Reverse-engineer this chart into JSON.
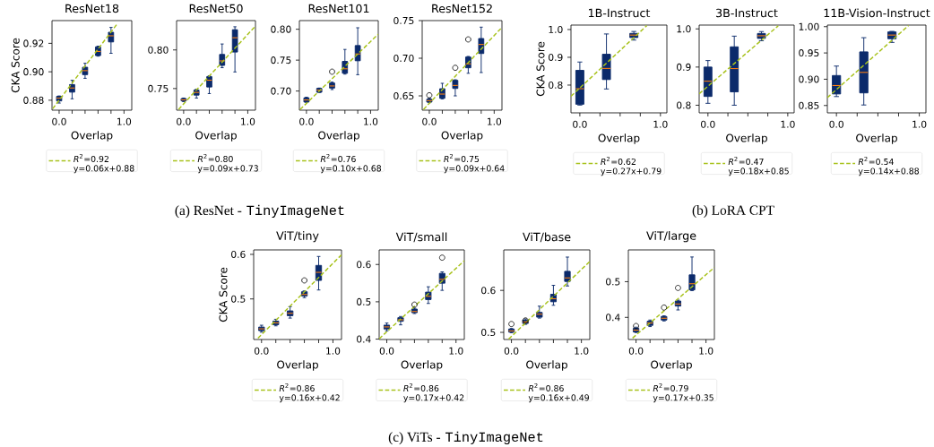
{
  "chart_data": [
    {
      "type": "box",
      "title": "ResNet18",
      "xlabel": "Overlap",
      "ylabel": "CKA Score",
      "xlim": [
        -0.11,
        1.12
      ],
      "ylim": [
        0.873,
        0.936
      ],
      "xticks": [
        {
          "value": 0,
          "label": "0.0"
        },
        {
          "value": 0.2,
          "label": null
        },
        {
          "value": 0.4,
          "label": null
        },
        {
          "value": 0.6,
          "label": null
        },
        {
          "value": 0.8,
          "label": null
        },
        {
          "value": 1,
          "label": "1.0"
        }
      ],
      "yticks": [
        {
          "value": 0.88,
          "label": "0.88"
        },
        {
          "value": 0.9,
          "label": "0.90"
        },
        {
          "value": 0.92,
          "label": "0.92"
        }
      ],
      "legend": "bottom",
      "annotations": [
        "(a) ResNet -",
        "TinyImageNet"
      ],
      "series": [
        {
          "color": "#0b2a6b",
          "x": [
            0,
            0.2,
            0.4,
            0.6,
            0.8
          ],
          "boxes": [
            {
              "low": 0.878,
              "q1": 0.8795,
              "median": 0.8815,
              "q3": 0.8827,
              "high": 0.883
            },
            {
              "low": 0.881,
              "q1": 0.8857,
              "median": 0.8886,
              "q3": 0.891,
              "high": 0.894
            },
            {
              "low": 0.8954,
              "q1": 0.898,
              "median": 0.9008,
              "q3": 0.9032,
              "high": 0.906
            },
            {
              "low": 0.911,
              "q1": 0.9114,
              "median": 0.9143,
              "q3": 0.9175,
              "high": 0.918
            },
            {
              "low": 0.913,
              "q1": 0.921,
              "median": 0.9253,
              "q3": 0.9278,
              "high": 0.9312
            }
          ]
        },
        {
          "type": "line",
          "name": "*R*$^{2}$=0.92 y=0.06x+0.88",
          "color": "#a8c21c",
          "line_style": "dashed",
          "x": [
            -0.1,
            0.9
          ],
          "values": [
            0.874,
            0.934
          ]
        }
      ]
    },
    {
      "type": "box",
      "title": "ResNet50",
      "xlabel": "Overlap",
      "xlim": [
        -0.11,
        1.12
      ],
      "ylim": [
        0.722,
        0.838
      ],
      "xticks": [
        {
          "value": 0,
          "label": "0.0"
        },
        {
          "value": 0.2,
          "label": null
        },
        {
          "value": 0.4,
          "label": null
        },
        {
          "value": 0.6,
          "label": null
        },
        {
          "value": 0.8,
          "label": null
        },
        {
          "value": 1,
          "label": "1.0"
        }
      ],
      "yticks": [
        {
          "value": 0.75,
          "label": "0.75"
        },
        {
          "value": 0.8,
          "label": "0.80"
        }
      ],
      "legend": "bottom",
      "series": [
        {
          "color": "#0b2a6b",
          "x": [
            0,
            0.2,
            0.4,
            0.6,
            0.8
          ],
          "boxes": [
            {
              "low": 0.7331,
              "q1": 0.734,
              "median": 0.7354,
              "q3": 0.737,
              "high": 0.7377
            },
            {
              "low": 0.7377,
              "q1": 0.7415,
              "median": 0.745,
              "q3": 0.748,
              "high": 0.7492
            },
            {
              "low": 0.7435,
              "q1": 0.752,
              "median": 0.7608,
              "q3": 0.7654,
              "high": 0.7665
            },
            {
              "low": 0.777,
              "q1": 0.78,
              "median": 0.7858,
              "q3": 0.7942,
              "high": 0.8077
            },
            {
              "low": 0.7715,
              "q1": 0.7973,
              "median": 0.8158,
              "q3": 0.8262,
              "high": 0.83
            }
          ]
        },
        {
          "type": "line",
          "name": "*R*$^{2}$=0.80 y=0.09x+0.73",
          "color": "#a8c21c",
          "line_style": "dashed",
          "x": [
            -0.08,
            1.12
          ],
          "values": [
            0.723,
            0.831
          ]
        }
      ]
    },
    {
      "type": "box",
      "title": "ResNet101",
      "xlabel": "Overlap",
      "xlim": [
        -0.11,
        1.12
      ],
      "ylim": [
        0.669,
        0.814
      ],
      "xticks": [
        {
          "value": 0,
          "label": "0.0"
        },
        {
          "value": 0.2,
          "label": null
        },
        {
          "value": 0.4,
          "label": null
        },
        {
          "value": 0.6,
          "label": null
        },
        {
          "value": 0.8,
          "label": null
        },
        {
          "value": 1,
          "label": "1.0"
        }
      ],
      "yticks": [
        {
          "value": 0.7,
          "label": "0.70"
        },
        {
          "value": 0.75,
          "label": "0.75"
        },
        {
          "value": 0.8,
          "label": "0.80"
        }
      ],
      "legend": "bottom",
      "series": [
        {
          "color": "#0b2a6b",
          "x": [
            0,
            0.2,
            0.4,
            0.6,
            0.8
          ],
          "boxes": [
            {
              "low": 0.6817,
              "q1": 0.6822,
              "median": 0.6856,
              "q3": 0.689,
              "high": 0.69
            },
            {
              "low": 0.6976,
              "q1": 0.698,
              "median": 0.7014,
              "q3": 0.7043,
              "high": 0.7048
            },
            {
              "low": 0.7024,
              "q1": 0.7048,
              "median": 0.7082,
              "q3": 0.713,
              "high": 0.7144,
              "outliers": [
                0.7313
              ]
            },
            {
              "low": 0.7274,
              "q1": 0.7288,
              "median": 0.736,
              "q3": 0.748,
              "high": 0.7673
            },
            {
              "low": 0.7264,
              "q1": 0.749,
              "median": 0.76,
              "q3": 0.7736,
              "high": 0.8024
            }
          ]
        },
        {
          "type": "line",
          "name": "*R*$^{2}$=0.76 y=0.10x+0.68",
          "color": "#a8c21c",
          "line_style": "dashed",
          "x": [
            -0.1,
            1.12
          ],
          "values": [
            0.67,
            0.792
          ]
        }
      ]
    },
    {
      "type": "box",
      "title": "ResNet152",
      "xlabel": "Overlap",
      "xlim": [
        -0.11,
        1.12
      ],
      "ylim": [
        0.631,
        0.75
      ],
      "xticks": [
        {
          "value": 0,
          "label": "0.0"
        },
        {
          "value": 0.2,
          "label": null
        },
        {
          "value": 0.4,
          "label": null
        },
        {
          "value": 0.6,
          "label": null
        },
        {
          "value": 0.8,
          "label": null
        },
        {
          "value": 1,
          "label": "1.0"
        }
      ],
      "yticks": [
        {
          "value": 0.65,
          "label": "0.65"
        },
        {
          "value": 0.7,
          "label": "0.70"
        },
        {
          "value": 0.75,
          "label": "0.75"
        }
      ],
      "legend": "bottom",
      "series": [
        {
          "color": "#0b2a6b",
          "x": [
            0,
            0.2,
            0.4,
            0.6,
            0.8
          ],
          "boxes": [
            {
              "low": 0.6409,
              "q1": 0.6417,
              "median": 0.6437,
              "q3": 0.6456,
              "high": 0.6468,
              "outliers": [
                0.6508
              ]
            },
            {
              "low": 0.646,
              "q1": 0.6468,
              "median": 0.6524,
              "q3": 0.6595,
              "high": 0.6667
            },
            {
              "low": 0.65,
              "q1": 0.6599,
              "median": 0.6639,
              "q3": 0.6706,
              "high": 0.6714,
              "outliers": [
                0.6873
              ]
            },
            {
              "low": 0.68,
              "q1": 0.6873,
              "median": 0.6925,
              "q3": 0.7016,
              "high": 0.7024,
              "outliers": [
                0.725
              ]
            },
            {
              "low": 0.681,
              "q1": 0.7063,
              "median": 0.7183,
              "q3": 0.7262,
              "high": 0.7413
            }
          ]
        },
        {
          "type": "line",
          "name": "*R*$^{2}$=0.75 y=0.09x+0.64",
          "color": "#a8c21c",
          "line_style": "dashed",
          "x": [
            -0.09,
            1.12
          ],
          "values": [
            0.632,
            0.741
          ]
        }
      ]
    },
    {
      "type": "box",
      "title": "1B-Instruct",
      "xlabel": "Overlap",
      "ylabel": "CKA Score",
      "xlim": [
        -0.11,
        1.08
      ],
      "ylim": [
        0.7,
        1.016
      ],
      "xticks": [
        {
          "value": 0,
          "label": "0.0"
        },
        {
          "value": 0.25,
          "label": null
        },
        {
          "value": 0.5,
          "label": null
        },
        {
          "value": 0.75,
          "label": null
        },
        {
          "value": 1,
          "label": "1.0"
        }
      ],
      "yticks": [
        {
          "value": 0.8,
          "label": "0.8"
        },
        {
          "value": 0.9,
          "label": "0.9"
        },
        {
          "value": 1.0,
          "label": "1.0"
        }
      ],
      "legend": "bottom",
      "annotations": [
        "(b) LoRA CPT"
      ],
      "series": [
        {
          "color": "#0b2a6b",
          "x": [
            0,
            0.33,
            0.67
          ],
          "boxes": [
            {
              "low": 0.728,
              "q1": 0.731,
              "median": 0.787,
              "q3": 0.853,
              "high": 0.883
            },
            {
              "low": 0.786,
              "q1": 0.82,
              "median": 0.86,
              "q3": 0.911,
              "high": 0.984
            },
            {
              "low": 0.962,
              "q1": 0.971,
              "median": 0.98,
              "q3": 0.986,
              "high": 0.993
            }
          ]
        },
        {
          "type": "line",
          "name": "*R*$^{2}$=0.62 y=0.27x+0.79",
          "color": "#a8c21c",
          "line_style": "dashed",
          "x": [
            -0.11,
            0.83
          ],
          "values": [
            0.76,
            1.014
          ]
        }
      ]
    },
    {
      "type": "box",
      "title": "3B-Instruct",
      "xlabel": "Overlap",
      "xlim": [
        -0.11,
        1.08
      ],
      "ylim": [
        0.78,
        1.01
      ],
      "xticks": [
        {
          "value": 0,
          "label": "0.0"
        },
        {
          "value": 0.25,
          "label": null
        },
        {
          "value": 0.5,
          "label": null
        },
        {
          "value": 0.75,
          "label": null
        },
        {
          "value": 1,
          "label": "1.0"
        }
      ],
      "yticks": [
        {
          "value": 0.8,
          "label": "0.8"
        },
        {
          "value": 0.9,
          "label": "0.9"
        },
        {
          "value": 1.0,
          "label": "1.0"
        }
      ],
      "legend": "bottom",
      "series": [
        {
          "color": "#0b2a6b",
          "x": [
            0,
            0.33,
            0.67
          ],
          "boxes": [
            {
              "low": 0.805,
              "q1": 0.823,
              "median": 0.863,
              "q3": 0.9,
              "high": 0.917
            },
            {
              "low": 0.8,
              "q1": 0.835,
              "median": 0.896,
              "q3": 0.953,
              "high": 0.981
            },
            {
              "low": 0.969,
              "q1": 0.975,
              "median": 0.982,
              "q3": 0.988,
              "high": 0.993
            }
          ]
        },
        {
          "type": "line",
          "name": "*R*$^{2}$=0.47 y=0.18x+0.85",
          "color": "#a8c21c",
          "line_style": "dashed",
          "x": [
            -0.11,
            0.88
          ],
          "values": [
            0.83,
            1.008
          ]
        }
      ]
    },
    {
      "type": "box",
      "title": "11B-Vision-Instruct",
      "xlabel": "Overlap",
      "xlim": [
        -0.11,
        1.08
      ],
      "ylim": [
        0.836,
        1.003
      ],
      "xticks": [
        {
          "value": 0,
          "label": "0.0"
        },
        {
          "value": 0.25,
          "label": null
        },
        {
          "value": 0.5,
          "label": null
        },
        {
          "value": 0.75,
          "label": null
        },
        {
          "value": 1,
          "label": "1.0"
        }
      ],
      "yticks": [
        {
          "value": 0.85,
          "label": "0.85"
        },
        {
          "value": 0.9,
          "label": "0.90"
        },
        {
          "value": 0.95,
          "label": "0.95"
        },
        {
          "value": 1.0,
          "label": "1.00"
        }
      ],
      "legend": "bottom",
      "series": [
        {
          "color": "#0b2a6b",
          "x": [
            0,
            0.33,
            0.67
          ],
          "boxes": [
            {
              "low": 0.867,
              "q1": 0.872,
              "median": 0.888,
              "q3": 0.907,
              "high": 0.925
            },
            {
              "low": 0.851,
              "q1": 0.874,
              "median": 0.913,
              "q3": 0.952,
              "high": 0.979
            },
            {
              "low": 0.97,
              "q1": 0.977,
              "median": 0.984,
              "q3": 0.99,
              "high": 0.991
            }
          ]
        },
        {
          "type": "line",
          "name": "*R*$^{2}$=0.54 y=0.14x+0.88",
          "color": "#a8c21c",
          "line_style": "dashed",
          "x": [
            -0.11,
            0.87
          ],
          "values": [
            0.865,
            1.002
          ]
        }
      ]
    },
    {
      "type": "box",
      "title": "ViT/tiny",
      "xlabel": "Overlap",
      "ylabel": "CKA Score",
      "xlim": [
        -0.11,
        1.12
      ],
      "ylim": [
        0.409,
        0.61
      ],
      "xticks": [
        {
          "value": 0,
          "label": "0.0"
        },
        {
          "value": 0.2,
          "label": null
        },
        {
          "value": 0.4,
          "label": null
        },
        {
          "value": 0.6,
          "label": null
        },
        {
          "value": 0.8,
          "label": null
        },
        {
          "value": 1,
          "label": "1.0"
        }
      ],
      "yticks": [
        {
          "value": 0.5,
          "label": "0.5"
        },
        {
          "value": 0.6,
          "label": "0.6"
        }
      ],
      "legend": "bottom",
      "annotations": [
        "(c) ViTs -",
        "TinyImageNet"
      ],
      "series": [
        {
          "color": "#0b2a6b",
          "x": [
            0,
            0.2,
            0.4,
            0.6,
            0.8
          ],
          "boxes": [
            {
              "low": 0.4255,
              "q1": 0.4289,
              "median": 0.4329,
              "q3": 0.4369,
              "high": 0.441
            },
            {
              "low": 0.4396,
              "q1": 0.4423,
              "median": 0.4463,
              "q3": 0.4503,
              "high": 0.4544
            },
            {
              "low": 0.457,
              "q1": 0.4624,
              "median": 0.4678,
              "q3": 0.4732,
              "high": 0.4826
            },
            {
              "low": 0.503,
              "q1": 0.5067,
              "median": 0.51,
              "q3": 0.5161,
              "high": 0.518,
              "outliers": [
                0.5416
              ]
            },
            {
              "low": 0.5201,
              "q1": 0.5416,
              "median": 0.5597,
              "q3": 0.5752,
              "high": 0.5953
            }
          ]
        },
        {
          "type": "line",
          "name": "*R*$^{2}$=0.86 y=0.16x+0.42",
          "color": "#a8c21c",
          "line_style": "dashed",
          "x": [
            -0.05,
            1.12
          ],
          "values": [
            0.412,
            0.599
          ]
        }
      ]
    },
    {
      "type": "box",
      "title": "ViT/small",
      "xlabel": "Overlap",
      "xlim": [
        -0.11,
        1.12
      ],
      "ylim": [
        0.399,
        0.639
      ],
      "xticks": [
        {
          "value": 0,
          "label": "0.0"
        },
        {
          "value": 0.2,
          "label": null
        },
        {
          "value": 0.4,
          "label": null
        },
        {
          "value": 0.6,
          "label": null
        },
        {
          "value": 0.8,
          "label": null
        },
        {
          "value": 1,
          "label": "1.0"
        }
      ],
      "yticks": [
        {
          "value": 0.4,
          "label": "0.4"
        },
        {
          "value": 0.5,
          "label": "0.5"
        },
        {
          "value": 0.6,
          "label": "0.6"
        }
      ],
      "legend": "bottom",
      "series": [
        {
          "color": "#0b2a6b",
          "x": [
            0,
            0.2,
            0.4,
            0.6,
            0.8
          ],
          "boxes": [
            {
              "low": 0.4223,
              "q1": 0.4271,
              "median": 0.4327,
              "q3": 0.4375,
              "high": 0.443
            },
            {
              "low": 0.4382,
              "q1": 0.4478,
              "median": 0.4518,
              "q3": 0.4574,
              "high": 0.4606
            },
            {
              "low": 0.4685,
              "q1": 0.4709,
              "median": 0.4741,
              "q3": 0.4805,
              "high": 0.4829,
              "outliers": [
                0.4924
              ]
            },
            {
              "low": 0.4956,
              "q1": 0.506,
              "median": 0.5147,
              "q3": 0.5259,
              "high": 0.5402
            },
            {
              "low": 0.5307,
              "q1": 0.5498,
              "median": 0.5602,
              "q3": 0.5761,
              "high": 0.5801,
              "outliers": [
                0.6183
              ]
            }
          ]
        },
        {
          "type": "line",
          "name": "*R*$^{2}$=0.86 y=0.17x+0.42",
          "color": "#a8c21c",
          "line_style": "dashed",
          "x": [
            -0.11,
            1.12
          ],
          "values": [
            0.401,
            0.61
          ]
        }
      ]
    },
    {
      "type": "box",
      "title": "ViT/base",
      "xlabel": "Overlap",
      "xlim": [
        -0.11,
        1.12
      ],
      "ylim": [
        0.483,
        0.6965
      ],
      "xticks": [
        {
          "value": 0,
          "label": "0.0"
        },
        {
          "value": 0.2,
          "label": null
        },
        {
          "value": 0.4,
          "label": null
        },
        {
          "value": 0.6,
          "label": null
        },
        {
          "value": 0.8,
          "label": null
        },
        {
          "value": 1,
          "label": "1.0"
        }
      ],
      "yticks": [
        {
          "value": 0.5,
          "label": "0.5"
        },
        {
          "value": 0.6,
          "label": "0.6"
        }
      ],
      "legend": "bottom",
      "series": [
        {
          "color": "#0b2a6b",
          "x": [
            0,
            0.2,
            0.4,
            0.6,
            0.8
          ],
          "boxes": [
            {
              "low": 0.4993,
              "q1": 0.5007,
              "median": 0.5035,
              "q3": 0.5078,
              "high": 0.5092,
              "outliers": [
                0.5199
              ]
            },
            {
              "low": 0.5191,
              "q1": 0.5213,
              "median": 0.5248,
              "q3": 0.5291,
              "high": 0.5319,
              "outliers": [
                0.5284
              ]
            },
            {
              "low": 0.534,
              "q1": 0.5362,
              "median": 0.5433,
              "q3": 0.5475,
              "high": 0.5624
            },
            {
              "low": 0.5645,
              "q1": 0.573,
              "median": 0.5801,
              "q3": 0.5908,
              "high": 0.6121
            },
            {
              "low": 0.6106,
              "q1": 0.6213,
              "median": 0.6298,
              "q3": 0.6454,
              "high": 0.6794
            }
          ]
        },
        {
          "type": "line",
          "name": "*R*$^{2}$=0.86 y=0.16x+0.49",
          "color": "#a8c21c",
          "line_style": "dashed",
          "x": [
            -0.04,
            1.12
          ],
          "values": [
            0.484,
            0.669
          ]
        }
      ]
    },
    {
      "type": "box",
      "title": "ViT/large",
      "xlabel": "Overlap",
      "xlim": [
        -0.11,
        1.12
      ],
      "ylim": [
        0.338,
        0.589
      ],
      "xticks": [
        {
          "value": 0,
          "label": "0.0"
        },
        {
          "value": 0.2,
          "label": null
        },
        {
          "value": 0.4,
          "label": null
        },
        {
          "value": 0.6,
          "label": null
        },
        {
          "value": 0.8,
          "label": null
        },
        {
          "value": 1,
          "label": "1.0"
        }
      ],
      "yticks": [
        {
          "value": 0.4,
          "label": "0.4"
        },
        {
          "value": 0.5,
          "label": "0.5"
        }
      ],
      "legend": "bottom",
      "series": [
        {
          "color": "#0b2a6b",
          "x": [
            0,
            0.2,
            0.4,
            0.6,
            0.8
          ],
          "boxes": [
            {
              "low": 0.3575,
              "q1": 0.3592,
              "median": 0.3642,
              "q3": 0.3692,
              "high": 0.3725,
              "outliers": [
                0.3758
              ]
            },
            {
              "low": 0.3742,
              "q1": 0.3775,
              "median": 0.3842,
              "q3": 0.3892,
              "high": 0.3925
            },
            {
              "low": 0.39,
              "q1": 0.3925,
              "median": 0.3975,
              "q3": 0.4025,
              "high": 0.4042,
              "outliers": [
                0.4275
              ]
            },
            {
              "low": 0.4208,
              "q1": 0.4317,
              "median": 0.4375,
              "q3": 0.4458,
              "high": 0.4483,
              "outliers": [
                0.4825
              ]
            },
            {
              "low": 0.475,
              "q1": 0.477,
              "median": 0.4942,
              "q3": 0.5192,
              "high": 0.5692
            }
          ]
        },
        {
          "type": "line",
          "name": "*R*$^{2}$=0.79 y=0.17x+0.35",
          "color": "#a8c21c",
          "line_style": "dashed",
          "x": [
            -0.05,
            1.12
          ],
          "values": [
            0.342,
            0.54
          ]
        }
      ]
    }
  ]
}
